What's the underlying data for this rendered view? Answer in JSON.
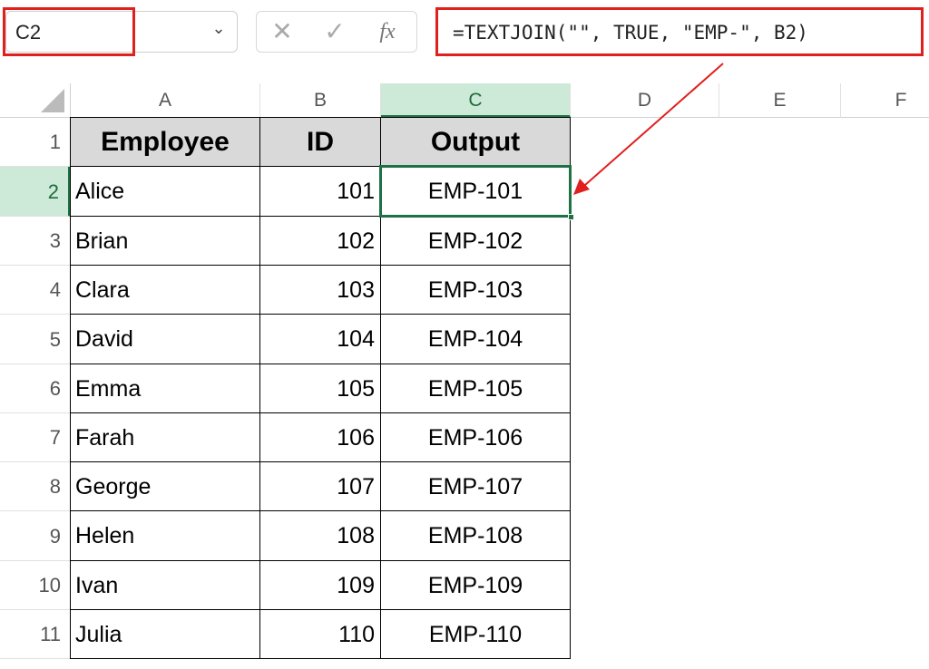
{
  "name_box": {
    "value": "C2"
  },
  "formula_bar": {
    "cancel_icon": "x-icon",
    "enter_icon": "check-icon",
    "fx_label": "fx",
    "formula": "=TEXTJOIN(\"\", TRUE, \"EMP-\", B2)"
  },
  "columns": [
    "A",
    "B",
    "C",
    "D",
    "E",
    "F"
  ],
  "rows": [
    "1",
    "2",
    "3",
    "4",
    "5",
    "6",
    "7",
    "8",
    "9",
    "10",
    "11"
  ],
  "headers": [
    "Employee",
    "ID",
    "Output"
  ],
  "data": [
    [
      "Alice",
      "101",
      "EMP-101"
    ],
    [
      "Brian",
      "102",
      "EMP-102"
    ],
    [
      "Clara",
      "103",
      "EMP-103"
    ],
    [
      "David",
      "104",
      "EMP-104"
    ],
    [
      "Emma",
      "105",
      "EMP-105"
    ],
    [
      "Farah",
      "106",
      "EMP-106"
    ],
    [
      "George",
      "107",
      "EMP-107"
    ],
    [
      "Helen",
      "108",
      "EMP-108"
    ],
    [
      "Ivan",
      "109",
      "EMP-109"
    ],
    [
      "Julia",
      "110",
      "EMP-110"
    ]
  ],
  "selected_cell": "C2",
  "colors": {
    "annotation": "#e0201e",
    "selection": "#1e7145"
  }
}
